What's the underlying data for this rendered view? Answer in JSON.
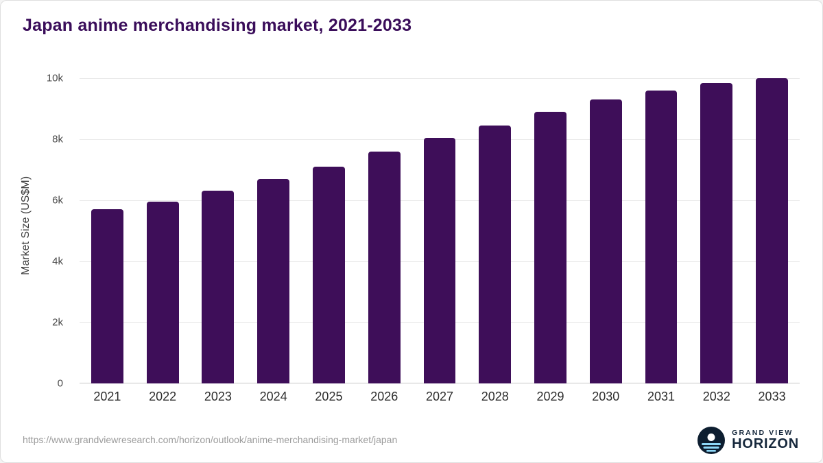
{
  "chart_data": {
    "type": "bar",
    "title": "Japan anime merchandising market, 2021-2033",
    "ylabel": "Market Size (US$M)",
    "xlabel": "",
    "categories": [
      "2021",
      "2022",
      "2023",
      "2024",
      "2025",
      "2026",
      "2027",
      "2028",
      "2029",
      "2030",
      "2031",
      "2032",
      "2033"
    ],
    "values": [
      5700,
      5950,
      6320,
      6700,
      7100,
      7600,
      8050,
      8450,
      8900,
      9300,
      9600,
      9850,
      10000
    ],
    "ylim": [
      0,
      10000
    ],
    "yticks": [
      {
        "label": "0",
        "value": 0
      },
      {
        "label": "2k",
        "value": 2000
      },
      {
        "label": "4k",
        "value": 4000
      },
      {
        "label": "6k",
        "value": 6000
      },
      {
        "label": "8k",
        "value": 8000
      },
      {
        "label": "10k",
        "value": 10000
      }
    ],
    "grid": true,
    "legend": false,
    "bar_color": "#3e0e59"
  },
  "colors": {
    "bar": "#3e0e59",
    "title": "#3a0d5a",
    "logo_navy": "#0d1e30",
    "logo_blue": "#8ed8f8"
  },
  "footer": {
    "source_url": "https://www.grandviewresearch.com/horizon/outlook/anime-merchandising-market/japan",
    "logo": {
      "line1": "GRAND VIEW",
      "line2": "HORIZON"
    }
  }
}
